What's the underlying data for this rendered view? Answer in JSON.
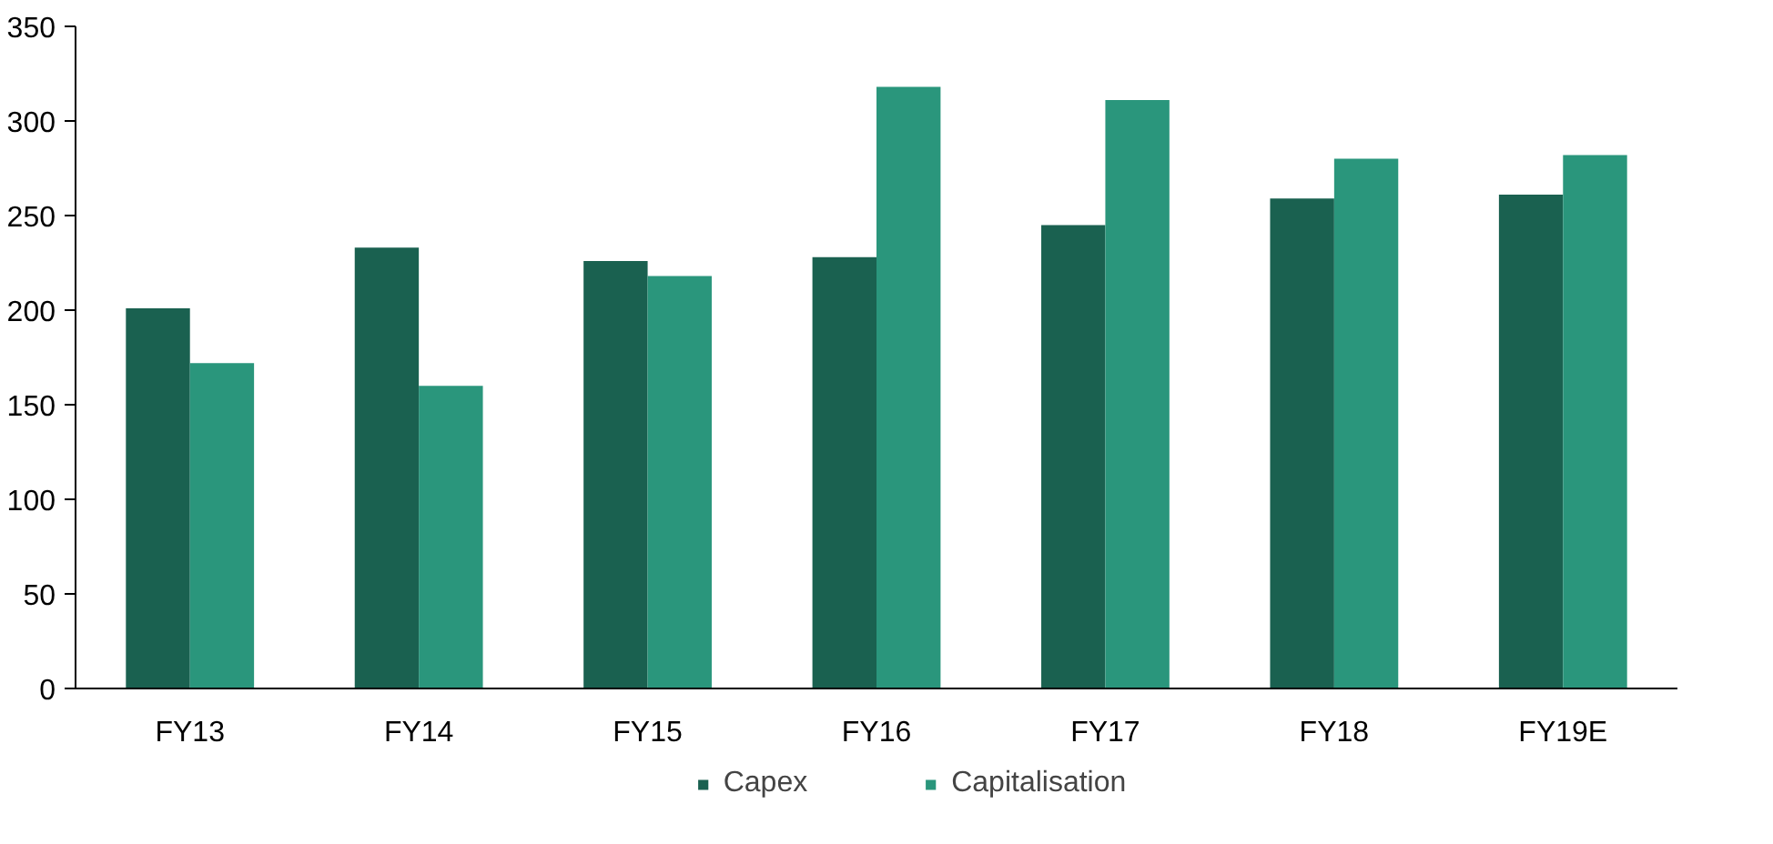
{
  "chart_data": {
    "type": "bar",
    "categories": [
      "FY13",
      "FY14",
      "FY15",
      "FY16",
      "FY17",
      "FY18",
      "FY19E"
    ],
    "series": [
      {
        "name": "Capex",
        "color": "#1a6150",
        "values": [
          201,
          233,
          226,
          228,
          245,
          259,
          261
        ]
      },
      {
        "name": "Capitalisation",
        "color": "#2a967c",
        "values": [
          172,
          160,
          218,
          318,
          311,
          280,
          282
        ]
      }
    ],
    "ylim": [
      0,
      350
    ],
    "yticks": [
      0,
      50,
      100,
      150,
      200,
      250,
      300,
      350
    ],
    "grid": false,
    "legend": "bottom"
  }
}
